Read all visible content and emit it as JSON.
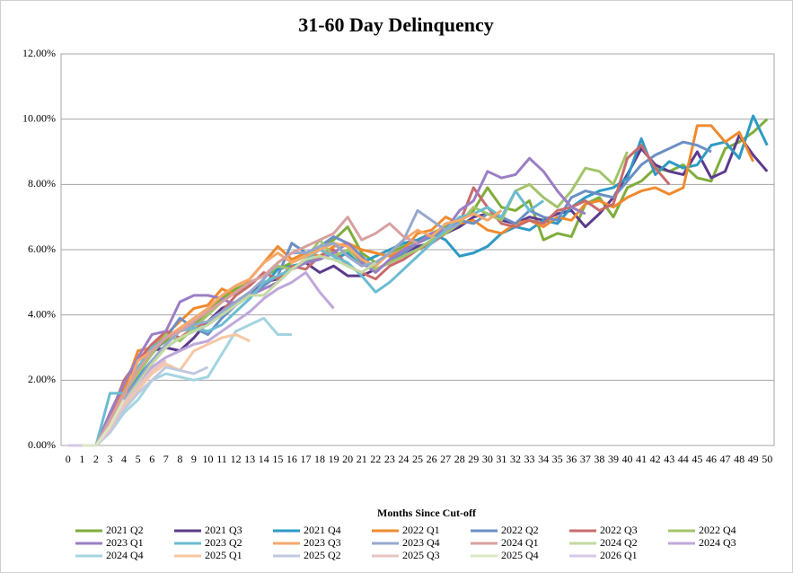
{
  "chart_data": {
    "type": "line",
    "title": "31-60 Day Delinquency",
    "x_label": "Months Since Cut-off",
    "categories": [
      0,
      1,
      2,
      3,
      4,
      5,
      6,
      7,
      8,
      9,
      10,
      11,
      12,
      13,
      14,
      15,
      16,
      17,
      18,
      19,
      20,
      21,
      22,
      23,
      24,
      25,
      26,
      27,
      28,
      29,
      30,
      31,
      32,
      33,
      34,
      35,
      36,
      37,
      38,
      39,
      40,
      41,
      42,
      43,
      44,
      45,
      46,
      47,
      48,
      49,
      50
    ],
    "ylim": [
      0,
      12
    ],
    "yticks": [
      {
        "value": 0,
        "label": "0.00%"
      },
      {
        "value": 2,
        "label": "2.00%"
      },
      {
        "value": 4,
        "label": "4.00%"
      },
      {
        "value": 6,
        "label": "6.00%"
      },
      {
        "value": 8,
        "label": "8.00%"
      },
      {
        "value": 10,
        "label": "10.00%"
      },
      {
        "value": 12,
        "label": "12.00%"
      }
    ],
    "grid": true,
    "legend": "bottom",
    "series": [
      {
        "name": "2021 Q2",
        "color": "#7fad3a",
        "values": [
          0,
          0,
          0,
          0.9,
          1.7,
          2.3,
          2.9,
          3.2,
          3.5,
          3.7,
          4.1,
          4.5,
          4.8,
          5.0,
          5.2,
          5.4,
          5.6,
          5.8,
          6.1,
          6.3,
          6.7,
          5.9,
          5.6,
          5.9,
          6.1,
          6.3,
          6.5,
          6.7,
          6.9,
          7.2,
          7.9,
          7.3,
          7.2,
          7.5,
          6.3,
          6.5,
          6.4,
          7.4,
          7.6,
          7.0,
          7.9,
          8.1,
          8.5,
          8.4,
          8.6,
          8.2,
          8.1,
          9.1,
          9.3,
          9.6,
          10.0
        ]
      },
      {
        "name": "2021 Q3",
        "color": "#5b3a8c",
        "values": [
          0,
          0,
          0,
          0.8,
          1.9,
          2.6,
          2.9,
          3.0,
          2.9,
          3.3,
          3.8,
          4.2,
          4.4,
          4.7,
          5.0,
          5.1,
          5.4,
          5.6,
          5.3,
          5.5,
          5.2,
          5.2,
          5.4,
          5.6,
          5.9,
          6.1,
          6.2,
          6.5,
          6.7,
          7.0,
          7.1,
          6.9,
          6.8,
          7.0,
          6.9,
          7.1,
          7.2,
          6.7,
          7.1,
          7.6,
          8.3,
          9.1,
          8.6,
          8.4,
          8.3,
          9.0,
          8.2,
          8.4,
          9.5,
          8.9,
          8.4
        ]
      },
      {
        "name": "2021 Q4",
        "color": "#2e9ac4",
        "values": [
          0,
          0,
          0,
          0.7,
          1.5,
          2.1,
          2.6,
          3.0,
          3.3,
          3.5,
          3.7,
          4.0,
          4.3,
          4.6,
          4.9,
          5.4,
          5.5,
          5.6,
          5.8,
          5.7,
          5.9,
          5.6,
          5.8,
          6.0,
          6.2,
          6.3,
          6.5,
          6.3,
          5.8,
          5.9,
          6.1,
          6.5,
          6.7,
          6.6,
          6.9,
          6.8,
          7.3,
          7.6,
          7.8,
          7.9,
          8.2,
          9.4,
          8.3,
          8.7,
          8.5,
          8.6,
          9.2,
          9.3,
          8.8,
          10.1,
          9.2
        ]
      },
      {
        "name": "2022 Q1",
        "color": "#f08a2e",
        "values": [
          0,
          0,
          0,
          0.8,
          1.7,
          2.9,
          3.0,
          3.4,
          3.8,
          4.2,
          4.3,
          4.8,
          4.6,
          5.1,
          5.6,
          6.1,
          5.7,
          5.9,
          5.8,
          6.1,
          6.2,
          6.0,
          5.9,
          5.8,
          6.0,
          6.5,
          6.6,
          7.0,
          6.8,
          6.9,
          6.6,
          6.5,
          6.8,
          6.9,
          6.7,
          7.0,
          6.9,
          7.4,
          7.5,
          7.3,
          7.6,
          7.8,
          7.9,
          7.7,
          7.9,
          9.8,
          9.8,
          9.3,
          9.6,
          8.7,
          null
        ]
      },
      {
        "name": "2022 Q2",
        "color": "#6b8fc4",
        "values": [
          0,
          0,
          0,
          0.6,
          1.4,
          2.3,
          2.8,
          3.3,
          3.9,
          3.6,
          3.4,
          3.9,
          4.3,
          4.6,
          4.9,
          5.2,
          6.2,
          5.9,
          6.1,
          6.4,
          6.2,
          5.8,
          5.4,
          5.6,
          5.9,
          6.2,
          6.4,
          6.6,
          6.9,
          6.8,
          7.1,
          7.0,
          6.8,
          7.2,
          7.0,
          6.9,
          7.6,
          7.8,
          7.7,
          7.6,
          8.1,
          8.6,
          8.9,
          9.1,
          9.3,
          9.2,
          9.0,
          null,
          null,
          null,
          null
        ]
      },
      {
        "name": "2022 Q3",
        "color": "#c96b6b",
        "values": [
          0,
          0,
          0,
          0.9,
          2.0,
          2.6,
          3.1,
          3.5,
          3.3,
          3.6,
          3.8,
          4.1,
          4.6,
          4.9,
          5.3,
          5.1,
          5.5,
          5.4,
          5.8,
          6.0,
          5.5,
          5.3,
          5.1,
          5.5,
          5.7,
          6.0,
          6.2,
          6.5,
          6.8,
          7.9,
          7.3,
          6.8,
          6.7,
          6.9,
          6.8,
          7.2,
          7.3,
          7.5,
          7.2,
          7.4,
          8.8,
          9.2,
          8.5,
          8.0,
          null,
          null,
          null,
          null,
          null,
          null,
          null
        ]
      },
      {
        "name": "2022 Q4",
        "color": "#a3c46b",
        "values": [
          0,
          0,
          0,
          0.7,
          1.6,
          2.2,
          2.8,
          3.4,
          3.2,
          3.6,
          4.0,
          4.4,
          4.7,
          5.0,
          5.2,
          5.5,
          5.4,
          5.7,
          6.3,
          5.8,
          6.0,
          5.6,
          5.4,
          5.6,
          5.8,
          6.0,
          6.3,
          6.5,
          6.8,
          7.3,
          7.1,
          6.9,
          7.8,
          8.0,
          7.6,
          7.3,
          7.8,
          8.5,
          8.4,
          8.0,
          9.0,
          null,
          null,
          null,
          null,
          null,
          null,
          null,
          null,
          null,
          null
        ]
      },
      {
        "name": "2023 Q1",
        "color": "#9b7ec4",
        "values": [
          0,
          0,
          0,
          1.0,
          1.9,
          2.7,
          3.4,
          3.5,
          4.4,
          4.6,
          4.6,
          4.5,
          4.3,
          4.6,
          4.8,
          5.0,
          5.4,
          5.6,
          5.7,
          5.9,
          6.2,
          5.6,
          5.3,
          5.7,
          6.0,
          6.2,
          6.5,
          6.6,
          7.2,
          7.5,
          8.4,
          8.2,
          8.3,
          8.8,
          8.4,
          7.8,
          7.3,
          7.1,
          null,
          null,
          null,
          null,
          null,
          null,
          null,
          null,
          null,
          null,
          null,
          null,
          null
        ]
      },
      {
        "name": "2023 Q2",
        "color": "#6bbcd0",
        "values": [
          0,
          0,
          0,
          1.6,
          1.6,
          2.4,
          3.0,
          3.3,
          3.5,
          3.6,
          3.5,
          3.7,
          4.1,
          4.5,
          5.0,
          5.2,
          5.4,
          5.7,
          6.0,
          5.8,
          5.6,
          5.2,
          4.7,
          5.0,
          5.4,
          5.8,
          6.2,
          6.6,
          7.0,
          7.1,
          7.3,
          7.0,
          7.8,
          7.2,
          7.5,
          null,
          null,
          null,
          null,
          null,
          null,
          null,
          null,
          null,
          null,
          null,
          null,
          null,
          null,
          null,
          null
        ]
      },
      {
        "name": "2023 Q3",
        "color": "#f5a86b",
        "values": [
          0,
          0,
          0,
          0.7,
          1.5,
          2.6,
          2.9,
          3.3,
          3.6,
          3.9,
          4.2,
          4.6,
          4.9,
          5.1,
          5.6,
          5.9,
          5.6,
          5.8,
          6.0,
          6.2,
          6.1,
          5.7,
          5.5,
          5.9,
          6.3,
          6.6,
          6.4,
          6.8,
          6.9,
          7.1,
          6.9,
          7.2,
          null,
          null,
          null,
          null,
          null,
          null,
          null,
          null,
          null,
          null,
          null,
          null,
          null,
          null,
          null,
          null,
          null,
          null,
          null
        ]
      },
      {
        "name": "2023 Q4",
        "color": "#96a8cc",
        "values": [
          0,
          0,
          0,
          0.6,
          1.4,
          2.0,
          2.6,
          3.1,
          3.5,
          3.7,
          3.8,
          4.1,
          4.4,
          4.7,
          5.1,
          5.6,
          5.9,
          5.9,
          6.1,
          6.2,
          5.8,
          5.5,
          5.6,
          5.9,
          6.3,
          7.2,
          6.9,
          6.6,
          6.8,
          null,
          null,
          null,
          null,
          null,
          null,
          null,
          null,
          null,
          null,
          null,
          null,
          null,
          null,
          null,
          null,
          null,
          null,
          null,
          null,
          null,
          null
        ]
      },
      {
        "name": "2024 Q1",
        "color": "#d8a0a0",
        "values": [
          0,
          0,
          0,
          0.8,
          1.6,
          2.3,
          2.9,
          3.3,
          3.5,
          3.8,
          4.1,
          4.4,
          4.7,
          5.0,
          5.2,
          5.6,
          5.9,
          6.1,
          6.3,
          6.5,
          7.0,
          6.3,
          6.5,
          6.8,
          6.4,
          6.2,
          null,
          null,
          null,
          null,
          null,
          null,
          null,
          null,
          null,
          null,
          null,
          null,
          null,
          null,
          null,
          null,
          null,
          null,
          null,
          null,
          null,
          null,
          null,
          null,
          null
        ]
      },
      {
        "name": "2024 Q2",
        "color": "#c4d9a3",
        "values": [
          0,
          0,
          0,
          0.5,
          1.3,
          1.9,
          2.5,
          3.0,
          3.3,
          3.5,
          3.7,
          4.0,
          4.3,
          4.6,
          4.6,
          5.0,
          5.4,
          5.7,
          5.8,
          5.7,
          5.5,
          5.3,
          5.6,
          null,
          null,
          null,
          null,
          null,
          null,
          null,
          null,
          null,
          null,
          null,
          null,
          null,
          null,
          null,
          null,
          null,
          null,
          null,
          null,
          null,
          null,
          null,
          null,
          null,
          null,
          null,
          null
        ]
      },
      {
        "name": "2024 Q3",
        "color": "#bfa8d9",
        "values": [
          0,
          0,
          0,
          0.4,
          1.2,
          1.8,
          2.4,
          2.7,
          2.9,
          3.1,
          3.2,
          3.5,
          3.8,
          4.1,
          4.5,
          4.8,
          5.0,
          5.3,
          4.7,
          4.2,
          null,
          null,
          null,
          null,
          null,
          null,
          null,
          null,
          null,
          null,
          null,
          null,
          null,
          null,
          null,
          null,
          null,
          null,
          null,
          null,
          null,
          null,
          null,
          null,
          null,
          null,
          null,
          null,
          null,
          null,
          null
        ]
      },
      {
        "name": "2024 Q4",
        "color": "#a3d4e0",
        "values": [
          0,
          0,
          0,
          0.4,
          1.0,
          1.4,
          2.0,
          2.2,
          2.1,
          2.0,
          2.1,
          2.8,
          3.5,
          3.7,
          3.9,
          3.4,
          3.4,
          null,
          null,
          null,
          null,
          null,
          null,
          null,
          null,
          null,
          null,
          null,
          null,
          null,
          null,
          null,
          null,
          null,
          null,
          null,
          null,
          null,
          null,
          null,
          null,
          null,
          null,
          null,
          null,
          null,
          null,
          null,
          null,
          null,
          null
        ]
      },
      {
        "name": "2025 Q1",
        "color": "#f7c7a3",
        "values": [
          0,
          0,
          0,
          0.5,
          1.2,
          1.7,
          2.2,
          2.5,
          2.3,
          2.9,
          3.1,
          3.3,
          3.4,
          3.2,
          null,
          null,
          null,
          null,
          null,
          null,
          null,
          null,
          null,
          null,
          null,
          null,
          null,
          null,
          null,
          null,
          null,
          null,
          null,
          null,
          null,
          null,
          null,
          null,
          null,
          null,
          null,
          null,
          null,
          null,
          null,
          null,
          null,
          null,
          null,
          null,
          null
        ]
      },
      {
        "name": "2025 Q2",
        "color": "#c0c8e0",
        "values": [
          0,
          0,
          0,
          0.4,
          1.1,
          1.6,
          2.0,
          2.4,
          2.3,
          2.2,
          2.4,
          null,
          null,
          null,
          null,
          null,
          null,
          null,
          null,
          null,
          null,
          null,
          null,
          null,
          null,
          null,
          null,
          null,
          null,
          null,
          null,
          null,
          null,
          null,
          null,
          null,
          null,
          null,
          null,
          null,
          null,
          null,
          null,
          null,
          null,
          null,
          null,
          null,
          null,
          null,
          null
        ]
      },
      {
        "name": "2025 Q3",
        "color": "#e8c3c3",
        "values": [
          0,
          0,
          0,
          0.5,
          1.3,
          1.8,
          2.3,
          2.6,
          null,
          null,
          null,
          null,
          null,
          null,
          null,
          null,
          null,
          null,
          null,
          null,
          null,
          null,
          null,
          null,
          null,
          null,
          null,
          null,
          null,
          null,
          null,
          null,
          null,
          null,
          null,
          null,
          null,
          null,
          null,
          null,
          null,
          null,
          null,
          null,
          null,
          null,
          null,
          null,
          null,
          null,
          null
        ]
      },
      {
        "name": "2025 Q4",
        "color": "#d9e6c4",
        "values": [
          0,
          0,
          0,
          0.6,
          1.4,
          null,
          null,
          null,
          null,
          null,
          null,
          null,
          null,
          null,
          null,
          null,
          null,
          null,
          null,
          null,
          null,
          null,
          null,
          null,
          null,
          null,
          null,
          null,
          null,
          null,
          null,
          null,
          null,
          null,
          null,
          null,
          null,
          null,
          null,
          null,
          null,
          null,
          null,
          null,
          null,
          null,
          null,
          null,
          null,
          null,
          null
        ]
      },
      {
        "name": "2026 Q1",
        "color": "#d4c8e6",
        "values": [
          0,
          0,
          null,
          null,
          null,
          null,
          null,
          null,
          null,
          null,
          null,
          null,
          null,
          null,
          null,
          null,
          null,
          null,
          null,
          null,
          null,
          null,
          null,
          null,
          null,
          null,
          null,
          null,
          null,
          null,
          null,
          null,
          null,
          null,
          null,
          null,
          null,
          null,
          null,
          null,
          null,
          null,
          null,
          null,
          null,
          null,
          null,
          null,
          null,
          null,
          null
        ]
      }
    ]
  }
}
